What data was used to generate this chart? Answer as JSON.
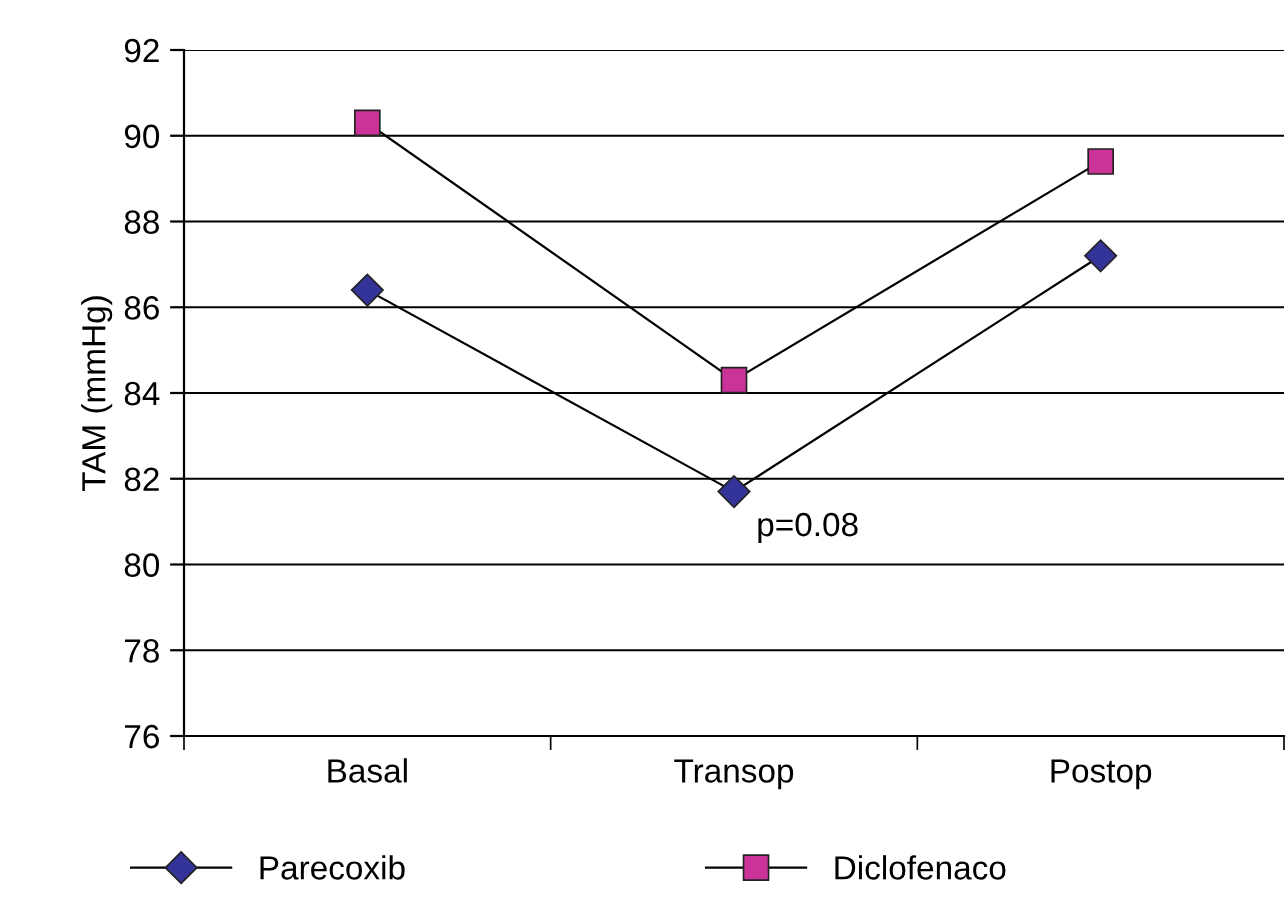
{
  "chart_data": {
    "type": "line",
    "ylabel": "TAM (mmHg)",
    "categories": [
      "Basal",
      "Transop",
      "Postop"
    ],
    "series": [
      {
        "name": "Parecoxib",
        "color": "#333399",
        "marker": "diamond",
        "values": [
          86.4,
          81.7,
          87.2
        ]
      },
      {
        "name": "Diclofenaco",
        "color": "#cc3399",
        "marker": "square",
        "values": [
          90.3,
          84.3,
          89.4
        ]
      }
    ],
    "ylim": [
      76,
      92
    ],
    "yticks": [
      76,
      78,
      80,
      82,
      84,
      86,
      88,
      90,
      92
    ],
    "grid": "y",
    "legend": "bottom",
    "annotations": [
      {
        "text": "p=0.08",
        "x": "Transop",
        "y": 81.7
      }
    ]
  }
}
